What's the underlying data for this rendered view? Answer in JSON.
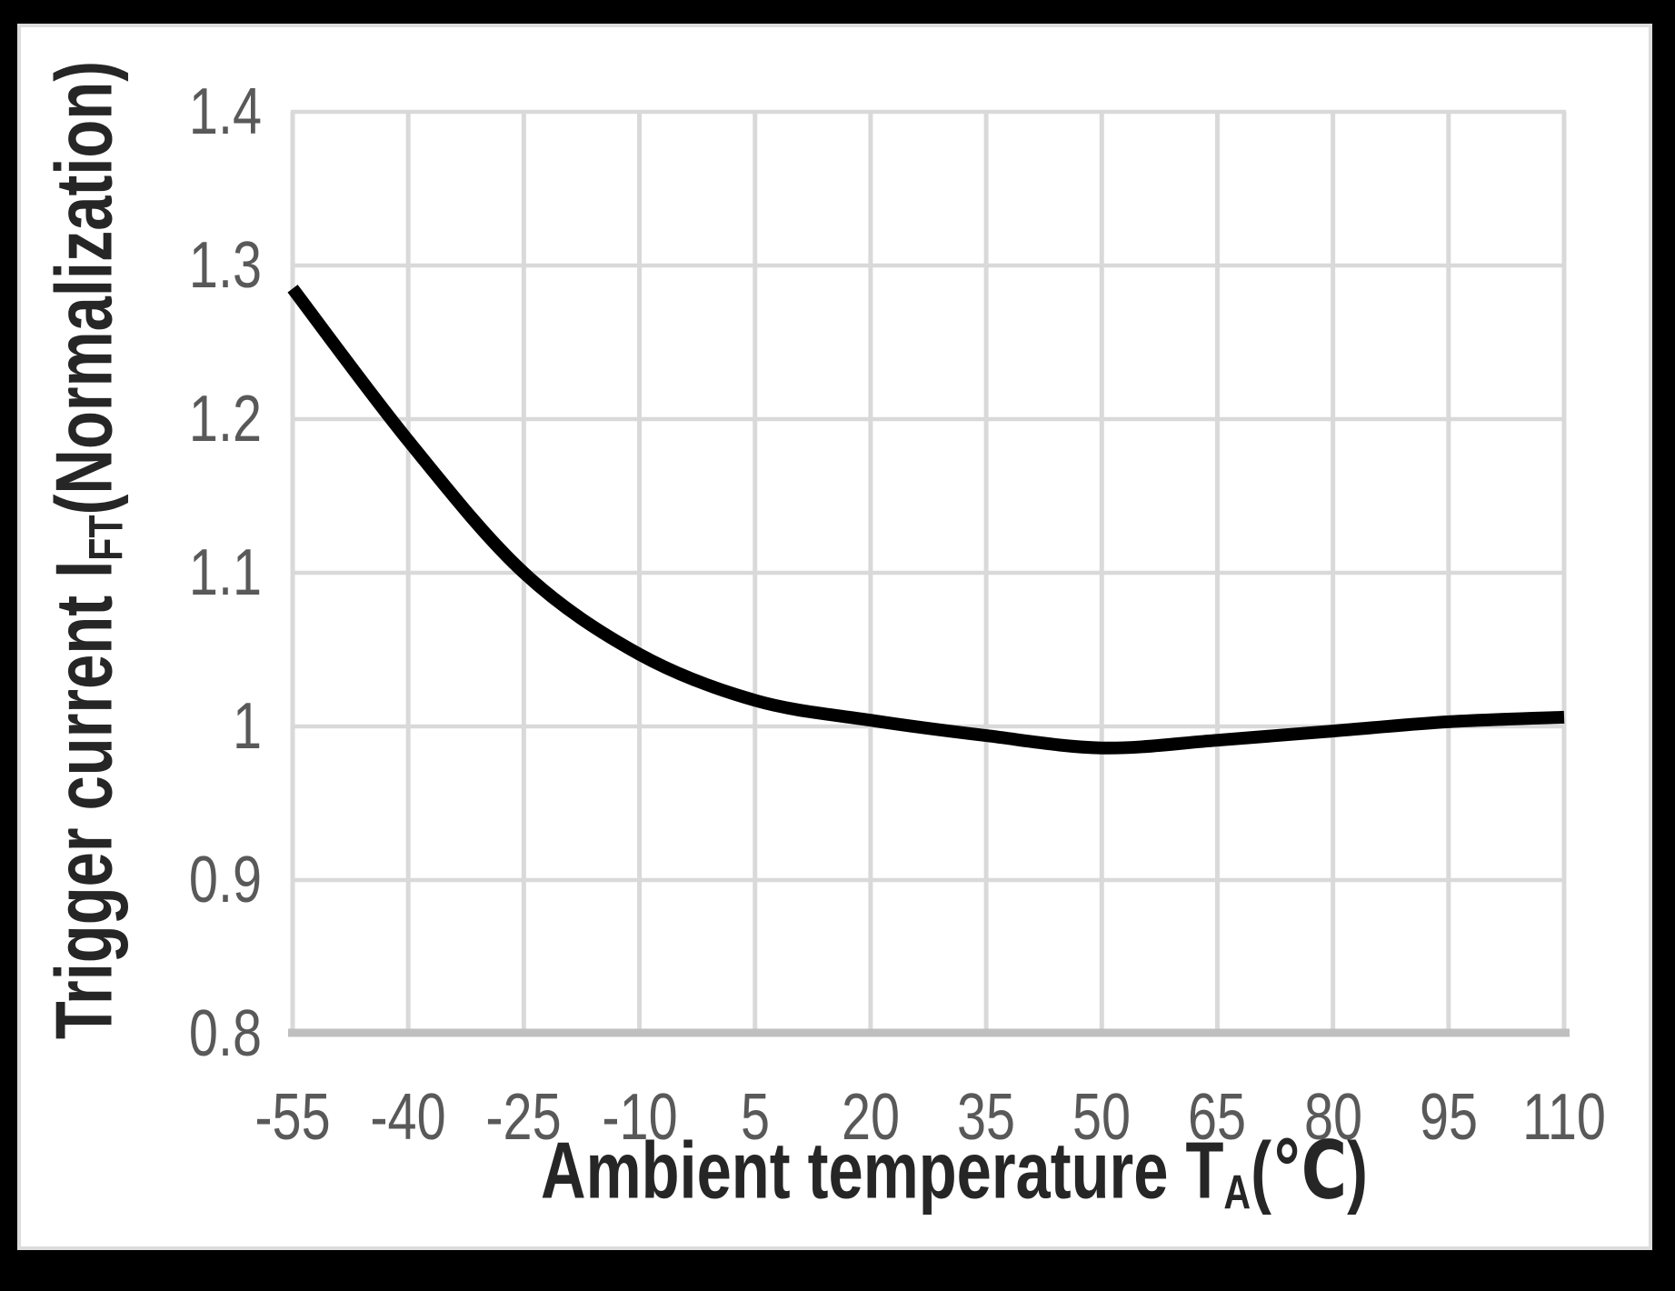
{
  "page": {
    "background": "#000000"
  },
  "panel": {
    "background": "#ffffff",
    "border_color": "#dcdcdc"
  },
  "chart_data": {
    "type": "line",
    "title": "",
    "x_label": {
      "pre": "Ambient temperature T",
      "sub": "A",
      "post": "(℃)"
    },
    "y_label": {
      "pre": "Trigger current I",
      "sub": "FT",
      "post": "(Normalization)"
    },
    "x": [
      -55,
      -40,
      -25,
      -10,
      5,
      20,
      35,
      50,
      65,
      80,
      95,
      110
    ],
    "values": [
      1.285,
      1.186,
      1.1,
      1.047,
      1.017,
      1.004,
      0.994,
      0.986,
      0.991,
      0.997,
      1.003,
      1.006
    ],
    "x_tick_labels": [
      "-55",
      "-40",
      "-25",
      "-10",
      "5",
      "20",
      "35",
      "50",
      "65",
      "80",
      "95",
      "110"
    ],
    "y_tick_labels": [
      "1.4",
      "1.3",
      "1.2",
      "1.1",
      "1",
      "0.9",
      "0.8"
    ],
    "y_tick_values": [
      1.4,
      1.3,
      1.2,
      1.1,
      1.0,
      0.9,
      0.8
    ],
    "xlim": [
      -55,
      110
    ],
    "ylim": [
      0.8,
      1.4
    ],
    "grid": "on",
    "legend": "none",
    "colors": {
      "line": "#000000",
      "grid": "#d9d9d9",
      "axis_line": "#bfbfbf",
      "tick_text": "#595959",
      "axis_title_text": "#262626"
    }
  }
}
